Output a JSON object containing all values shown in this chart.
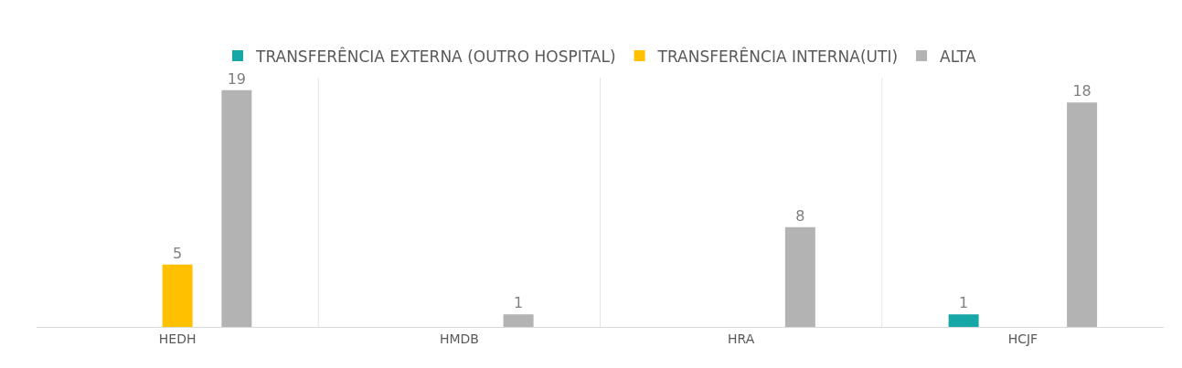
{
  "chart_data": {
    "type": "bar",
    "categories": [
      "HEDH",
      "HMDB",
      "HRA",
      "HCJF"
    ],
    "series": [
      {
        "name": "TRANSFERÊNCIA EXTERNA (OUTRO HOSPITAL)",
        "color": "#17a7a7",
        "values": [
          null,
          null,
          null,
          1
        ]
      },
      {
        "name": "TRANSFERÊNCIA INTERNA(UTI)",
        "color": "#ffc000",
        "values": [
          5,
          null,
          null,
          null
        ]
      },
      {
        "name": "ALTA",
        "color": "#b3b3b3",
        "values": [
          19,
          1,
          8,
          18
        ]
      }
    ],
    "data_labels": true,
    "legend": "top",
    "grid": false
  }
}
